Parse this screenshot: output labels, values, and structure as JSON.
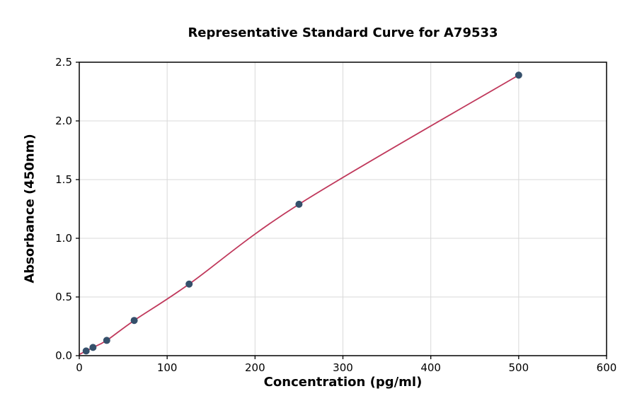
{
  "chart_data": {
    "type": "scatter",
    "title": "Representative Standard Curve for A79533",
    "xlabel": "Concentration (pg/ml)",
    "ylabel": "Absorbance (450nm)",
    "xlim": [
      0,
      600
    ],
    "ylim": [
      0,
      2.5
    ],
    "xticks": [
      0,
      100,
      200,
      300,
      400,
      500,
      600
    ],
    "xtick_labels": [
      "0",
      "100",
      "200",
      "300",
      "400",
      "500",
      "600"
    ],
    "yticks": [
      0.0,
      0.5,
      1.0,
      1.5,
      2.0,
      2.5
    ],
    "ytick_labels": [
      "0.0",
      "0.5",
      "1.0",
      "1.5",
      "2.0",
      "2.5"
    ],
    "grid": true,
    "legend": "none",
    "series": [
      {
        "name": "standard-curve",
        "points": [
          [
            7.8,
            0.04
          ],
          [
            15.6,
            0.07
          ],
          [
            31.25,
            0.13
          ],
          [
            62.5,
            0.3
          ],
          [
            125,
            0.61
          ],
          [
            250,
            1.29
          ],
          [
            500,
            2.39
          ]
        ],
        "curve_start": [
          0,
          0.01
        ]
      }
    ],
    "colors": {
      "point": "#35506b",
      "line": "#c0395c",
      "grid": "#d9d9d9",
      "axis": "#000000",
      "background": "#ffffff"
    }
  }
}
